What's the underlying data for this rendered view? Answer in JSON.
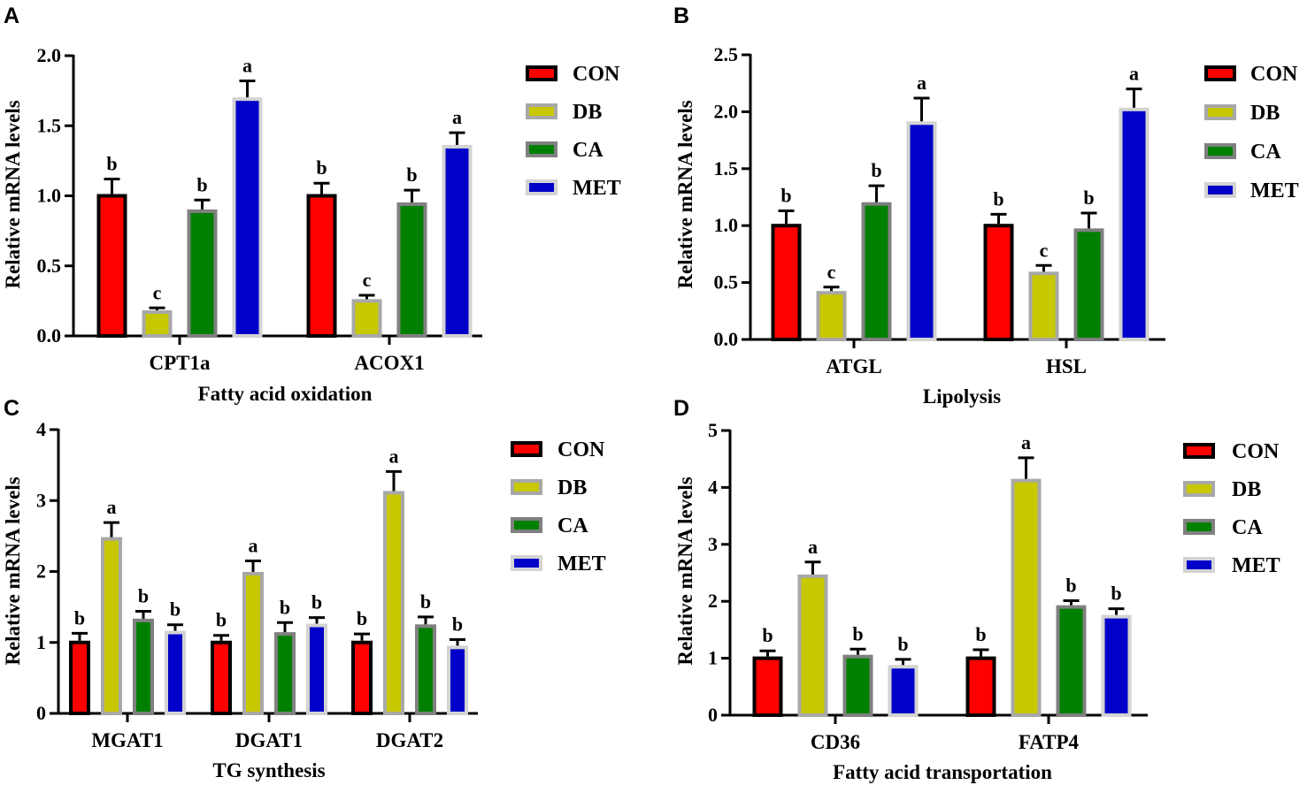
{
  "colors": {
    "CON": {
      "fill": "#ff0000",
      "stroke": "#000000"
    },
    "DB": {
      "fill": "#c8c800",
      "stroke": "#a8a8a8"
    },
    "CA": {
      "fill": "#008000",
      "stroke": "#808080"
    },
    "MET": {
      "fill": "#0000c8",
      "stroke": "#d3d3d3"
    }
  },
  "chart_data": [
    {
      "panel": "A",
      "type": "bar",
      "xlabel": "Fatty acid oxidation",
      "ylabel": "Relative mRNA levels",
      "ylim": [
        0,
        2.0
      ],
      "yticks": [
        "0.0",
        "0.5",
        "1.0",
        "1.5",
        "2.0"
      ],
      "ytick_values": [
        0,
        0.5,
        1.0,
        1.5,
        2.0
      ],
      "categories": [
        "CPT1a",
        "ACOX1"
      ],
      "legend": [
        "CON",
        "DB",
        "CA",
        "MET"
      ],
      "series": [
        {
          "name": "CON",
          "values": [
            1.0,
            1.0
          ],
          "errors": [
            0.12,
            0.09
          ],
          "sig": [
            "b",
            "b"
          ]
        },
        {
          "name": "DB",
          "values": [
            0.17,
            0.25
          ],
          "errors": [
            0.03,
            0.04
          ],
          "sig": [
            "c",
            "c"
          ]
        },
        {
          "name": "CA",
          "values": [
            0.89,
            0.94
          ],
          "errors": [
            0.08,
            0.1
          ],
          "sig": [
            "b",
            "b"
          ]
        },
        {
          "name": "MET",
          "values": [
            1.69,
            1.35
          ],
          "errors": [
            0.13,
            0.1
          ],
          "sig": [
            "a",
            "a"
          ]
        }
      ]
    },
    {
      "panel": "B",
      "type": "bar",
      "xlabel": "Lipolysis",
      "ylabel": "Relative mRNA levels",
      "ylim": [
        0,
        2.5
      ],
      "yticks": [
        "0.0",
        "0.5",
        "1.0",
        "1.5",
        "2.0",
        "2.5"
      ],
      "ytick_values": [
        0,
        0.5,
        1.0,
        1.5,
        2.0,
        2.5
      ],
      "categories": [
        "ATGL",
        "HSL"
      ],
      "legend": [
        "CON",
        "DB",
        "CA",
        "MET"
      ],
      "series": [
        {
          "name": "CON",
          "values": [
            1.0,
            1.0
          ],
          "errors": [
            0.13,
            0.1
          ],
          "sig": [
            "b",
            "b"
          ]
        },
        {
          "name": "DB",
          "values": [
            0.41,
            0.58
          ],
          "errors": [
            0.05,
            0.07
          ],
          "sig": [
            "c",
            "c"
          ]
        },
        {
          "name": "CA",
          "values": [
            1.19,
            0.96
          ],
          "errors": [
            0.16,
            0.15
          ],
          "sig": [
            "b",
            "b"
          ]
        },
        {
          "name": "MET",
          "values": [
            1.9,
            2.02
          ],
          "errors": [
            0.22,
            0.18
          ],
          "sig": [
            "a",
            "a"
          ]
        }
      ]
    },
    {
      "panel": "C",
      "type": "bar",
      "xlabel": "TG synthesis",
      "ylabel": "Relative mRNA levels",
      "ylim": [
        0,
        4
      ],
      "yticks": [
        "0",
        "1",
        "2",
        "3",
        "4"
      ],
      "ytick_values": [
        0,
        1,
        2,
        3,
        4
      ],
      "categories": [
        "MGAT1",
        "DGAT1",
        "DGAT2"
      ],
      "legend": [
        "CON",
        "DB",
        "CA",
        "MET"
      ],
      "series": [
        {
          "name": "CON",
          "values": [
            1.0,
            1.0,
            1.0
          ],
          "errors": [
            0.13,
            0.1,
            0.12
          ],
          "sig": [
            "b",
            "b",
            "b"
          ]
        },
        {
          "name": "DB",
          "values": [
            2.46,
            1.97,
            3.11
          ],
          "errors": [
            0.23,
            0.18,
            0.3
          ],
          "sig": [
            "a",
            "a",
            "a"
          ]
        },
        {
          "name": "CA",
          "values": [
            1.31,
            1.12,
            1.23
          ],
          "errors": [
            0.13,
            0.16,
            0.13
          ],
          "sig": [
            "b",
            "b",
            "b"
          ]
        },
        {
          "name": "MET",
          "values": [
            1.14,
            1.24,
            0.93
          ],
          "errors": [
            0.11,
            0.11,
            0.11
          ],
          "sig": [
            "b",
            "b",
            "b"
          ]
        }
      ]
    },
    {
      "panel": "D",
      "type": "bar",
      "xlabel": "Fatty acid transportation",
      "ylabel": "Relative mRNA levels",
      "ylim": [
        0,
        5
      ],
      "yticks": [
        "0",
        "1",
        "2",
        "3",
        "4",
        "5"
      ],
      "ytick_values": [
        0,
        1,
        2,
        3,
        4,
        5
      ],
      "categories": [
        "CD36",
        "FATP4"
      ],
      "legend": [
        "CON",
        "DB",
        "CA",
        "MET"
      ],
      "series": [
        {
          "name": "CON",
          "values": [
            1.0,
            1.0
          ],
          "errors": [
            0.13,
            0.15
          ],
          "sig": [
            "b",
            "b"
          ]
        },
        {
          "name": "DB",
          "values": [
            2.44,
            4.12
          ],
          "errors": [
            0.25,
            0.4
          ],
          "sig": [
            "a",
            "a"
          ]
        },
        {
          "name": "CA",
          "values": [
            1.03,
            1.9
          ],
          "errors": [
            0.13,
            0.11
          ],
          "sig": [
            "b",
            "b"
          ]
        },
        {
          "name": "MET",
          "values": [
            0.85,
            1.73
          ],
          "errors": [
            0.13,
            0.14
          ],
          "sig": [
            "b",
            "b"
          ]
        }
      ]
    }
  ]
}
